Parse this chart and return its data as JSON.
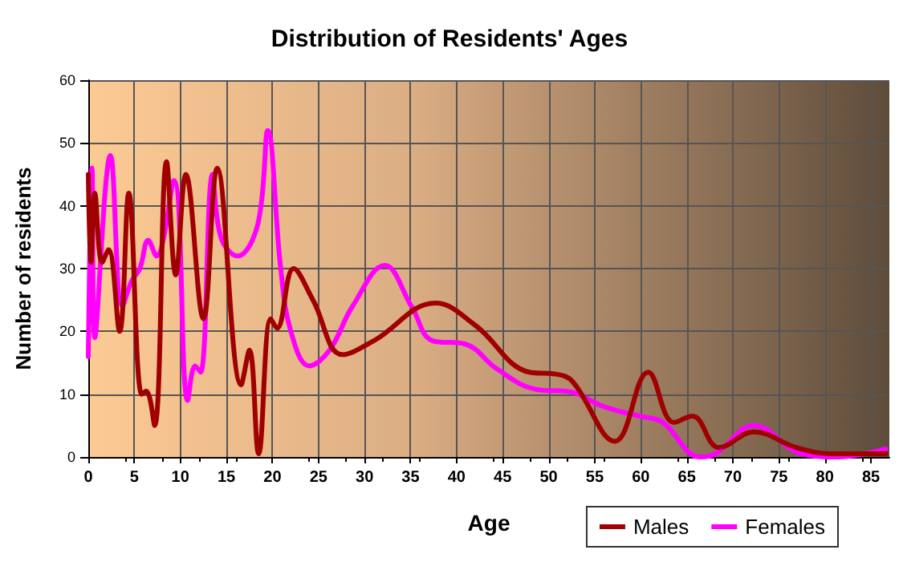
{
  "chart_data": {
    "type": "line",
    "title": "Distribution of Residents' Ages",
    "xlabel": "Age",
    "ylabel": "Number of residents",
    "xlim": [
      0,
      87
    ],
    "xticks": [
      0,
      5,
      10,
      15,
      20,
      25,
      30,
      35,
      40,
      45,
      50,
      55,
      60,
      65,
      70,
      75,
      80,
      85
    ],
    "ylim": [
      0,
      60
    ],
    "yticks": [
      0,
      10,
      20,
      30,
      40,
      50,
      60
    ],
    "grid": true,
    "legend": "bottom right",
    "marker": "none",
    "line_style": "solid",
    "series": [
      {
        "name": "Males",
        "color": "#a00000",
        "x": [
          0,
          0.3,
          0.7,
          1.5,
          2.2,
          3.4,
          4.4,
          5.8,
          6.3,
          7.2,
          8.5,
          9.5,
          10.6,
          12.5,
          14,
          16.6,
          17.5,
          18.5,
          19.8,
          20.5,
          22.3,
          24.4,
          27.6,
          31,
          37.7,
          42,
          47.9,
          50.8,
          52.6,
          57.2,
          60.8,
          63.6,
          65.6,
          68.5,
          72.3,
          76.9,
          80.9,
          86.6
        ],
        "values": [
          45,
          31,
          42,
          31,
          33,
          20,
          42,
          10,
          10.5,
          5,
          47,
          29,
          45,
          22,
          46,
          11.5,
          17,
          0.5,
          22,
          20.5,
          30,
          25,
          16.3,
          18.5,
          24.5,
          21,
          13.5,
          13.2,
          12,
          2.5,
          13.5,
          5.5,
          6.5,
          1.5,
          4,
          1.5,
          0.5,
          0.5
        ]
      },
      {
        "name": "Females",
        "color": "#ff00ff",
        "x": [
          0,
          0.4,
          0.7,
          2.4,
          3.7,
          4.7,
          5.6,
          6.5,
          7.4,
          9.3,
          10.8,
          11.6,
          12.2,
          13.5,
          14.4,
          16.2,
          18.4,
          19.5,
          20.9,
          22,
          24,
          26.2,
          28.7,
          32.2,
          35.1,
          37.4,
          40.9,
          44.4,
          48.5,
          52.6,
          55.5,
          58.4,
          60,
          62.4,
          66.4,
          68.1,
          72.3,
          77.5,
          81.5,
          86.6
        ],
        "values": [
          16,
          46,
          19,
          48,
          24,
          28,
          30,
          34.5,
          32,
          44,
          9,
          14.5,
          13.5,
          45,
          35,
          32,
          37,
          52,
          30,
          20,
          14.5,
          17,
          24,
          30.5,
          24,
          18.5,
          18,
          14,
          10.8,
          10.3,
          8.3,
          7,
          6.5,
          5.5,
          0,
          0.5,
          5,
          0.5,
          0,
          1.3
        ]
      }
    ]
  }
}
